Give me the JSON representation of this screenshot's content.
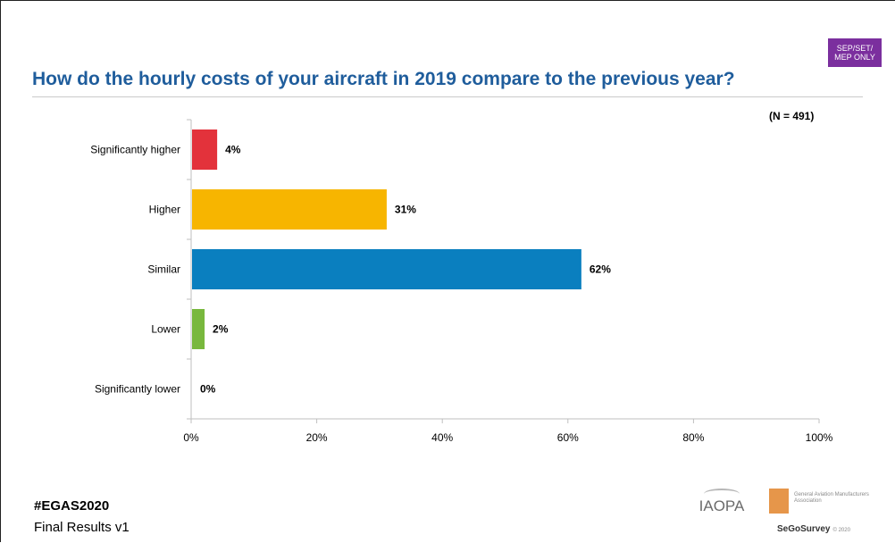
{
  "badge": {
    "line1": "SEP/SET/",
    "line2": "MEP ONLY"
  },
  "sample_note": "(N = 491)",
  "footer": {
    "hashtag": "#EGAS2020",
    "version": "Final Results v1"
  },
  "logos": {
    "iaopa": "IAOPA",
    "gama": "General Aviation Manufacturers Association",
    "sego": "SeGoSurvey",
    "copyright": "© 2020"
  },
  "colors": {
    "title": "#1f5d9c",
    "badge": "#7b2f9e"
  },
  "chart_data": {
    "type": "bar",
    "orientation": "horizontal",
    "title": "How do the hourly costs of your aircraft in 2019 compare to the previous year?",
    "xlabel": "",
    "ylabel": "",
    "categories": [
      "Significantly higher",
      "Higher",
      "Similar",
      "Lower",
      "Significantly lower"
    ],
    "values": [
      4,
      31,
      62,
      2,
      0
    ],
    "value_labels": [
      "4%",
      "31%",
      "62%",
      "2%",
      "0%"
    ],
    "bar_colors": [
      "#e3323b",
      "#f7b500",
      "#0a7fbf",
      "#78b83d",
      "#999999"
    ],
    "xlim": [
      0,
      100
    ],
    "x_ticks": [
      0,
      20,
      40,
      60,
      80,
      100
    ],
    "x_tick_labels": [
      "0%",
      "20%",
      "40%",
      "60%",
      "80%",
      "100%"
    ],
    "grid": false,
    "legend": "none"
  }
}
